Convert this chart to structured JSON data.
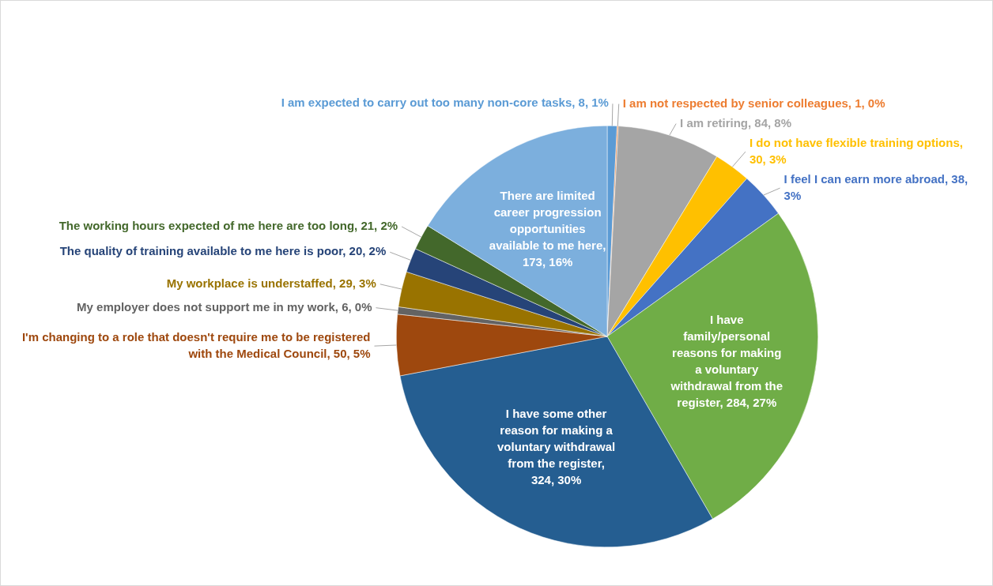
{
  "chart_data": {
    "type": "pie",
    "categories": [
      "I am expected to carry out too many non-core tasks, 8, 1%",
      "I am not respected by senior colleagues, 1, 0%",
      "I am retiring, 84, 8%",
      "I do not have flexible training options, 30, 3%",
      "I feel I can earn more abroad, 38, 3%",
      "I have family/personal reasons for making a voluntary withdrawal from the register, 284, 27%",
      "I have some other reason for making a voluntary withdrawal from the register, 324, 30%",
      "I'm changing to a role that doesn't require me to be registered with the Medical Council, 50, 5%",
      "My employer does not support me in my work, 6, 0%",
      "My workplace is understaffed, 29, 3%",
      "The quality of training available to me here is poor, 20, 2%",
      "The working hours expected of me here are too long, 21, 2%",
      "There are limited career progression opportunities available to me here, 173, 16%"
    ],
    "values": [
      8,
      1,
      84,
      30,
      38,
      284,
      324,
      50,
      6,
      29,
      20,
      21,
      173
    ],
    "colors": [
      "#5b9bd5",
      "#ed7d31",
      "#a5a5a5",
      "#ffc000",
      "#4472c4",
      "#70ad47",
      "#255e91",
      "#9e480e",
      "#636363",
      "#997300",
      "#264478",
      "#43682b",
      "#7cafdd"
    ]
  }
}
